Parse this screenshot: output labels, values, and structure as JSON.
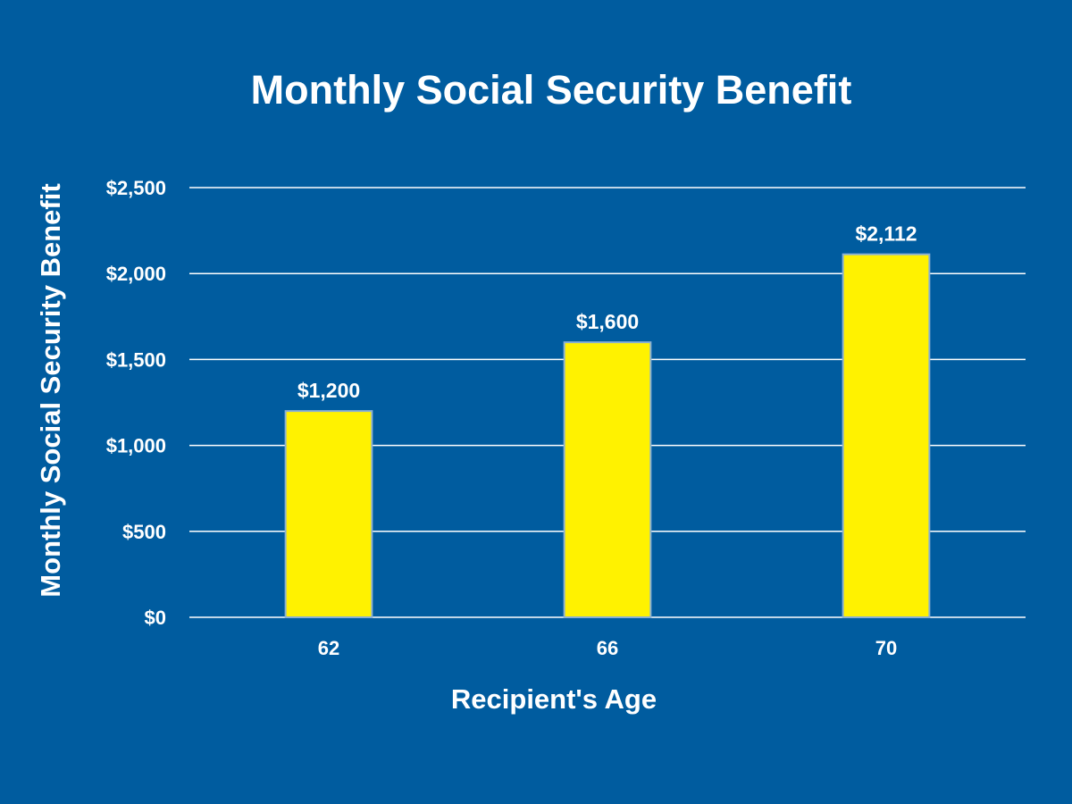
{
  "chart_data": {
    "type": "bar",
    "title": "Monthly Social Security Benefit",
    "xlabel": "Recipient's Age",
    "ylabel": "Monthly Social Security Benefit",
    "categories": [
      "62",
      "66",
      "70"
    ],
    "values": [
      1200,
      1600,
      2112
    ],
    "value_labels": [
      "$1,200",
      "$1,600",
      "$2,112"
    ],
    "ylim": [
      0,
      2500
    ],
    "yticks": [
      0,
      500,
      1000,
      1500,
      2000,
      2500
    ],
    "ytick_labels": [
      "$0",
      "$500",
      "$1,000",
      "$1,500",
      "$2,000",
      "$2,500"
    ],
    "grid": true,
    "legend": "none"
  },
  "colors": {
    "background": "#005c9f",
    "bar": "#fff200",
    "bar_edge": "#8ab0d4",
    "text": "#ffffff",
    "grid": "#ffffff"
  }
}
